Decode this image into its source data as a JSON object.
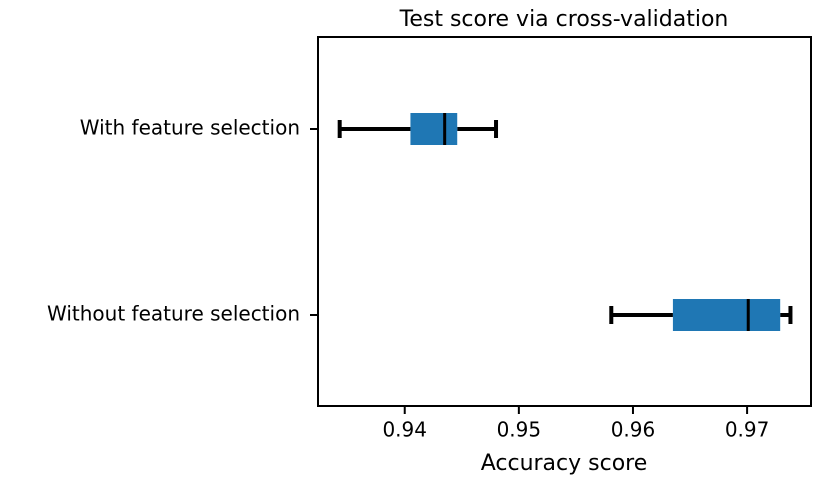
{
  "chart_data": {
    "type": "box",
    "orientation": "horizontal",
    "title": "Test score via cross-validation",
    "xlabel": "Accuracy score",
    "categories": [
      "With feature selection",
      "Without feature selection"
    ],
    "boxes": [
      {
        "whislo": 0.9343,
        "q1": 0.9405,
        "med": 0.9435,
        "q3": 0.9446,
        "whishi": 0.948
      },
      {
        "whislo": 0.9581,
        "q1": 0.9635,
        "med": 0.9701,
        "q3": 0.9729,
        "whishi": 0.9738
      }
    ],
    "color": "#1f77b4",
    "xlim": [
      0.9324,
      0.9756
    ],
    "xticks": [
      0.94,
      0.95,
      0.96,
      0.97
    ]
  }
}
